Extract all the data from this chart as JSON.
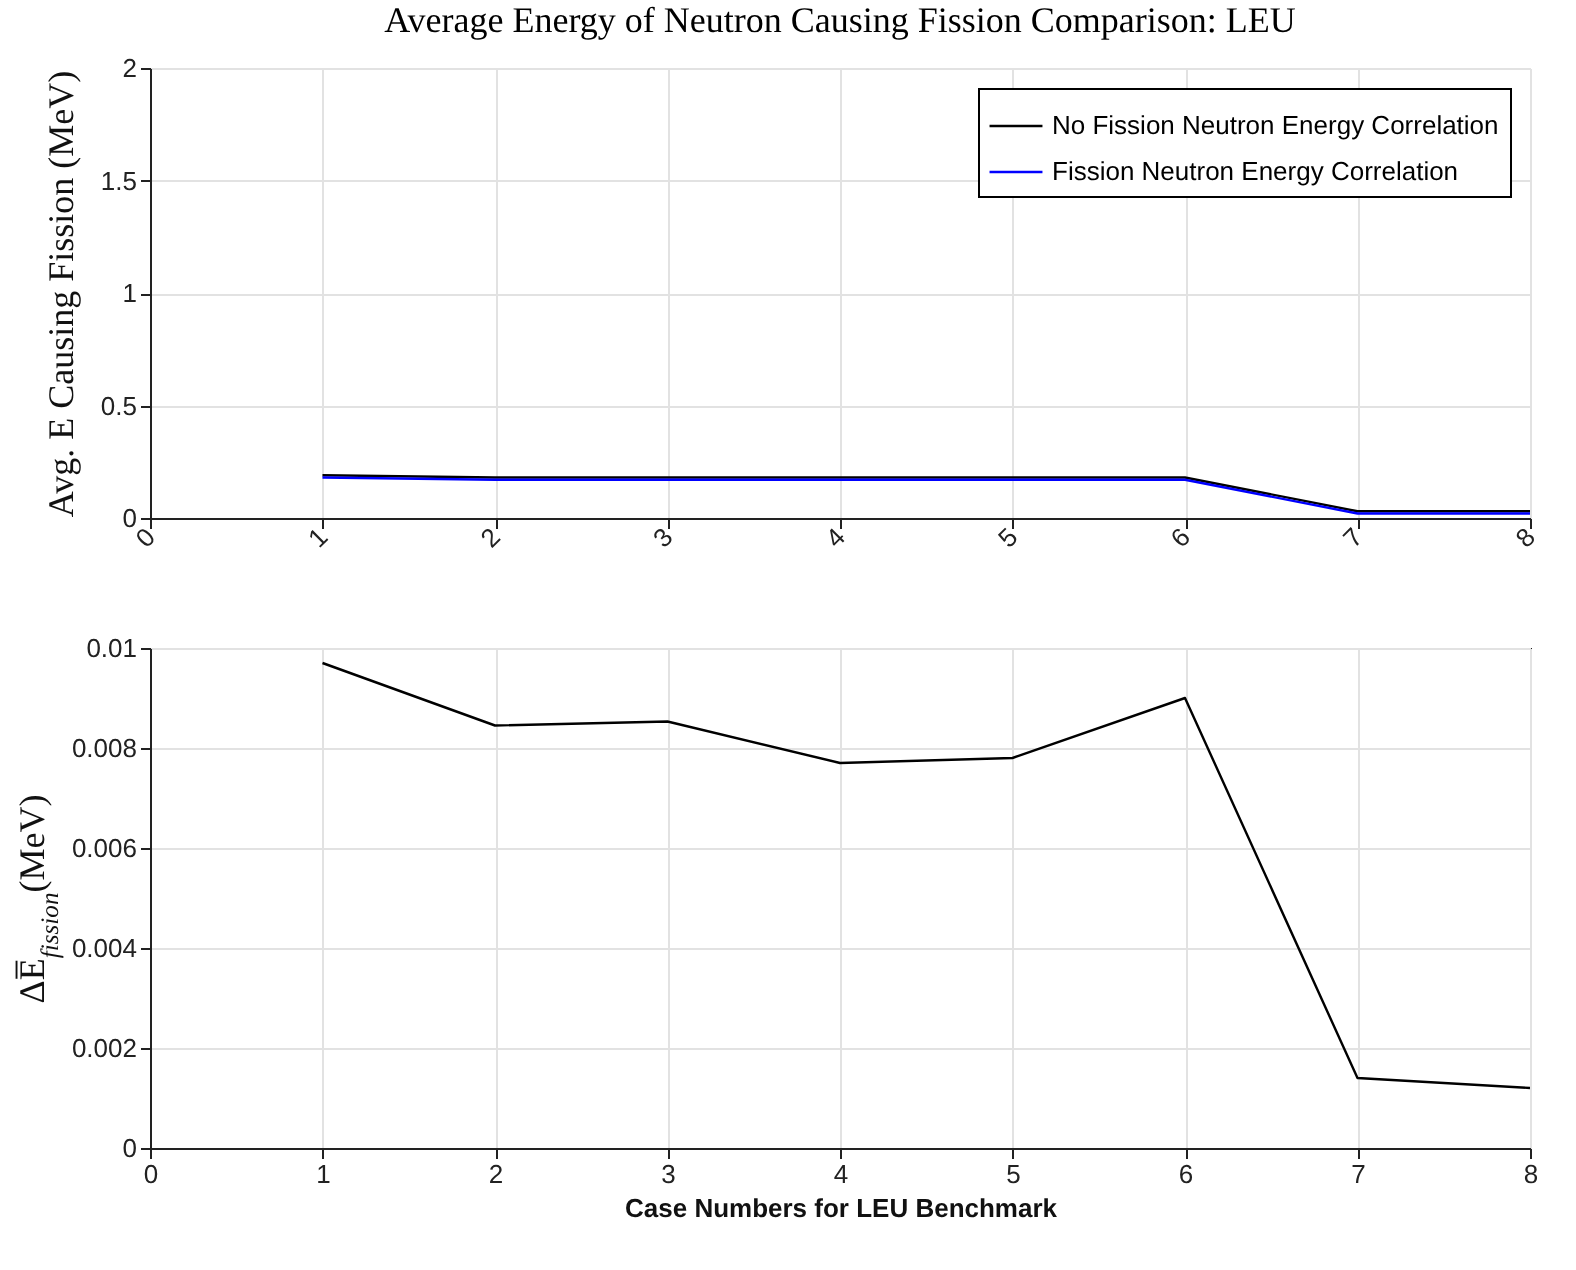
{
  "chart_data": [
    {
      "type": "line",
      "title": "Average Energy of Neutron Causing Fission Comparison: LEU",
      "ylabel": "Avg. E Causing Fission (MeV)",
      "x": [
        1,
        2,
        3,
        4,
        5,
        6,
        7,
        8
      ],
      "xlim": [
        0,
        8
      ],
      "xticks": [
        0,
        1,
        2,
        3,
        4,
        5,
        6,
        7,
        8
      ],
      "ylim": [
        0,
        2
      ],
      "yticks": [
        0,
        0.5,
        1,
        1.5,
        2
      ],
      "grid": true,
      "legend": "top right",
      "series": [
        {
          "name": "No Fission Neutron Energy Correlation",
          "color": "#000000",
          "values": [
            0.19,
            0.18,
            0.18,
            0.18,
            0.18,
            0.18,
            0.03,
            0.03
          ]
        },
        {
          "name": "Fission Neutron Energy Correlation",
          "color": "#0000ff",
          "values": [
            0.18,
            0.17,
            0.17,
            0.17,
            0.17,
            0.17,
            0.02,
            0.02
          ]
        }
      ]
    },
    {
      "type": "line",
      "xlabel": "Case Numbers for LEU Benchmark",
      "ylabel": "ΔE̅$_{fission}$(MeV)",
      "x": [
        1,
        2,
        3,
        4,
        5,
        6,
        7,
        8
      ],
      "xlim": [
        0,
        8
      ],
      "xticks": [
        0,
        1,
        2,
        3,
        4,
        5,
        6,
        7,
        8
      ],
      "ylim": [
        0,
        0.01
      ],
      "yticks": [
        0,
        0.002,
        0.004,
        0.006,
        0.008,
        0.01
      ],
      "grid": true,
      "series": [
        {
          "color": "#000000",
          "values": [
            0.0097,
            0.00845,
            0.00853,
            0.0077,
            0.0078,
            0.009,
            0.0014,
            0.0012
          ]
        }
      ]
    }
  ]
}
